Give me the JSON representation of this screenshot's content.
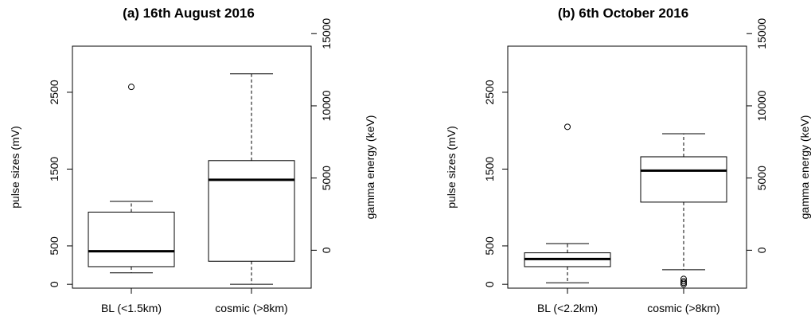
{
  "chart_data": [
    {
      "type": "boxplot",
      "title": "(a) 16th August 2016",
      "ylabel": "pulse sizes (mV)",
      "y2label": "gamma energy (keV)",
      "ylim": [
        -50,
        3100
      ],
      "y_ticks": [
        0,
        500,
        1500,
        2500
      ],
      "y2_ticks": [
        0,
        5000,
        10000,
        15000
      ],
      "categories": [
        "BL (<1.5km)",
        "cosmic (>8km)"
      ],
      "boxes": [
        {
          "whisker_low": 150,
          "q1": 230,
          "median": 430,
          "q3": 940,
          "whisker_high": 1080,
          "outliers": [
            2570
          ]
        },
        {
          "whisker_low": 0,
          "q1": 300,
          "median": 1360,
          "q3": 1610,
          "whisker_high": 2740,
          "outliers": []
        }
      ]
    },
    {
      "type": "boxplot",
      "title": "(b) 6th October 2016",
      "ylabel": "pulse sizes (mV)",
      "y2label": "gamma energy (keV)",
      "ylim": [
        -50,
        3100
      ],
      "y_ticks": [
        0,
        500,
        1500,
        2500
      ],
      "y2_ticks": [
        0,
        5000,
        10000,
        15000
      ],
      "categories": [
        "BL (<2.2km)",
        "cosmic (>8km)"
      ],
      "boxes": [
        {
          "whisker_low": 20,
          "q1": 230,
          "median": 330,
          "q3": 410,
          "whisker_high": 530,
          "outliers": [
            2050
          ]
        },
        {
          "whisker_low": 190,
          "q1": 1070,
          "median": 1480,
          "q3": 1660,
          "whisker_high": 1960,
          "outliers": [
            0,
            20,
            40,
            70
          ]
        }
      ]
    }
  ]
}
